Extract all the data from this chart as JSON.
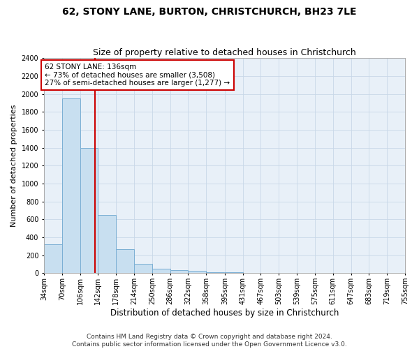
{
  "title1": "62, STONY LANE, BURTON, CHRISTCHURCH, BH23 7LE",
  "title2": "Size of property relative to detached houses in Christchurch",
  "xlabel": "Distribution of detached houses by size in Christchurch",
  "ylabel": "Number of detached properties",
  "footer1": "Contains HM Land Registry data © Crown copyright and database right 2024.",
  "footer2": "Contains public sector information licensed under the Open Government Licence v3.0.",
  "bin_edges": [
    34,
    70,
    106,
    142,
    178,
    214,
    250,
    286,
    322,
    358,
    395,
    431,
    467,
    503,
    539,
    575,
    611,
    647,
    683,
    719,
    755
  ],
  "bar_heights": [
    325,
    1950,
    1400,
    650,
    270,
    105,
    50,
    35,
    25,
    10,
    8,
    5,
    3,
    2,
    2,
    1,
    1,
    0,
    0,
    0
  ],
  "bar_color": "#c8dff0",
  "bar_edge_color": "#7bafd4",
  "grid_color": "#c8d8e8",
  "plot_bg_color": "#e8f0f8",
  "property_size": 136,
  "vline_color": "#cc0000",
  "annotation_text": "62 STONY LANE: 136sqm\n← 73% of detached houses are smaller (3,508)\n27% of semi-detached houses are larger (1,277) →",
  "annotation_box_color": "#ffffff",
  "annotation_box_edge": "#cc0000",
  "ylim": [
    0,
    2400
  ],
  "yticks": [
    0,
    200,
    400,
    600,
    800,
    1000,
    1200,
    1400,
    1600,
    1800,
    2000,
    2200,
    2400
  ],
  "tick_labels": [
    "34sqm",
    "70sqm",
    "106sqm",
    "142sqm",
    "178sqm",
    "214sqm",
    "250sqm",
    "286sqm",
    "322sqm",
    "358sqm",
    "395sqm",
    "431sqm",
    "467sqm",
    "503sqm",
    "539sqm",
    "575sqm",
    "611sqm",
    "647sqm",
    "683sqm",
    "719sqm",
    "755sqm"
  ],
  "title1_fontsize": 10,
  "title2_fontsize": 9,
  "xlabel_fontsize": 8.5,
  "ylabel_fontsize": 8,
  "tick_fontsize": 7,
  "footer_fontsize": 6.5,
  "annotation_fontsize": 7.5,
  "background_color": "#ffffff"
}
